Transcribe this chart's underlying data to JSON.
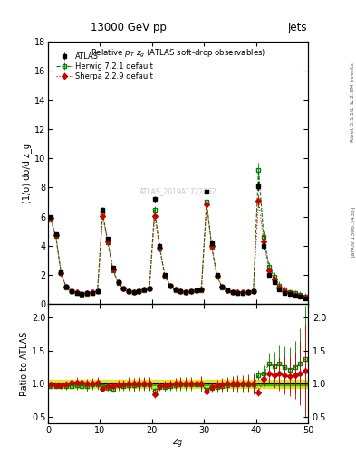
{
  "title_top": "13000 GeV pp",
  "title_right": "Jets",
  "plot_title": "Relative $p_T$ $z_g$ (ATLAS soft-drop observables)",
  "xlabel": "$z_g$",
  "ylabel_main": "(1/σ) dσ/d z_g",
  "ylabel_ratio": "Ratio to ATLAS",
  "right_label1": "Rivet 3.1.10; ≥ 2.9M events",
  "right_label2": "[arXiv:1306.3436]",
  "watermark": "ATLAS_2019A1722062",
  "xlim": [
    0,
    50
  ],
  "ylim_main": [
    0,
    18
  ],
  "ylim_ratio": [
    0.4,
    2.2
  ],
  "yticks_main": [
    0,
    2,
    4,
    6,
    8,
    10,
    12,
    14,
    16,
    18
  ],
  "yticks_ratio": [
    0.5,
    1.0,
    1.5,
    2.0
  ],
  "legend_atlas": "ATLAS",
  "legend_herwig": "Herwig 7.2.1 default",
  "legend_sherpa": "Sherpa 2.2.9 default",
  "atlas_color": "#000000",
  "herwig_color": "#008000",
  "sherpa_color": "#cc0000",
  "band_color_inner": "#00bb00",
  "band_color_outer": "#dddd00",
  "background_color": "#ffffff",
  "atlas_x": [
    0.5,
    1.5,
    2.5,
    3.5,
    4.5,
    5.5,
    6.5,
    7.5,
    8.5,
    9.5,
    10.5,
    11.5,
    12.5,
    13.5,
    14.5,
    15.5,
    16.5,
    17.5,
    18.5,
    19.5,
    20.5,
    21.5,
    22.5,
    23.5,
    24.5,
    25.5,
    26.5,
    27.5,
    28.5,
    29.5,
    30.5,
    31.5,
    32.5,
    33.5,
    34.5,
    35.5,
    36.5,
    37.5,
    38.5,
    39.5,
    40.5,
    41.5,
    42.5,
    43.5,
    44.5,
    45.5,
    46.5,
    47.5,
    48.5,
    49.5
  ],
  "atlas_y": [
    6.0,
    4.8,
    2.2,
    1.2,
    0.9,
    0.8,
    0.7,
    0.75,
    0.8,
    0.9,
    6.5,
    4.5,
    2.5,
    1.5,
    1.1,
    0.9,
    0.85,
    0.9,
    1.0,
    1.1,
    7.2,
    4.0,
    2.0,
    1.3,
    1.0,
    0.9,
    0.85,
    0.9,
    0.95,
    1.0,
    7.7,
    4.2,
    2.0,
    1.2,
    0.95,
    0.85,
    0.8,
    0.8,
    0.85,
    0.9,
    8.1,
    4.0,
    2.0,
    1.5,
    1.0,
    0.8,
    0.7,
    0.6,
    0.5,
    0.4
  ],
  "atlas_yerr": [
    0.12,
    0.1,
    0.06,
    0.05,
    0.04,
    0.04,
    0.04,
    0.04,
    0.04,
    0.05,
    0.18,
    0.14,
    0.09,
    0.07,
    0.05,
    0.05,
    0.05,
    0.05,
    0.06,
    0.07,
    0.22,
    0.16,
    0.09,
    0.06,
    0.05,
    0.05,
    0.05,
    0.05,
    0.06,
    0.07,
    0.28,
    0.2,
    0.11,
    0.08,
    0.06,
    0.06,
    0.06,
    0.06,
    0.07,
    0.09,
    0.35,
    0.25,
    0.14,
    0.12,
    0.1,
    0.1,
    0.1,
    0.1,
    0.12,
    0.15
  ],
  "herwig_y": [
    5.82,
    4.65,
    2.12,
    1.16,
    0.87,
    0.78,
    0.68,
    0.72,
    0.79,
    0.89,
    6.28,
    4.22,
    2.32,
    1.46,
    1.06,
    0.88,
    0.83,
    0.89,
    0.99,
    1.09,
    6.48,
    3.82,
    1.91,
    1.26,
    0.98,
    0.89,
    0.84,
    0.89,
    0.94,
    0.99,
    7.02,
    3.92,
    1.91,
    1.16,
    0.93,
    0.84,
    0.79,
    0.79,
    0.84,
    0.89,
    9.2,
    4.6,
    2.6,
    1.9,
    1.3,
    1.0,
    0.85,
    0.75,
    0.65,
    0.55
  ],
  "herwig_yerr": [
    0.14,
    0.11,
    0.07,
    0.05,
    0.04,
    0.04,
    0.04,
    0.04,
    0.04,
    0.05,
    0.2,
    0.16,
    0.1,
    0.08,
    0.06,
    0.06,
    0.06,
    0.06,
    0.07,
    0.08,
    0.25,
    0.18,
    0.1,
    0.07,
    0.06,
    0.06,
    0.06,
    0.06,
    0.07,
    0.08,
    0.32,
    0.22,
    0.12,
    0.09,
    0.07,
    0.07,
    0.07,
    0.07,
    0.08,
    0.1,
    0.5,
    0.4,
    0.3,
    0.28,
    0.25,
    0.22,
    0.2,
    0.2,
    0.22,
    0.25
  ],
  "sherpa_y": [
    5.92,
    4.72,
    2.16,
    1.19,
    0.92,
    0.82,
    0.71,
    0.75,
    0.81,
    0.92,
    6.02,
    4.32,
    2.41,
    1.49,
    1.09,
    0.91,
    0.85,
    0.91,
    1.01,
    1.11,
    6.02,
    3.87,
    1.96,
    1.29,
    1.01,
    0.91,
    0.86,
    0.91,
    0.96,
    1.01,
    6.82,
    4.02,
    1.96,
    1.19,
    0.95,
    0.86,
    0.81,
    0.81,
    0.86,
    0.91,
    7.1,
    4.3,
    2.3,
    1.7,
    1.15,
    0.9,
    0.78,
    0.68,
    0.58,
    0.48
  ],
  "sherpa_yerr": [
    0.14,
    0.11,
    0.07,
    0.05,
    0.04,
    0.04,
    0.04,
    0.04,
    0.04,
    0.05,
    0.2,
    0.16,
    0.1,
    0.08,
    0.06,
    0.06,
    0.06,
    0.06,
    0.07,
    0.08,
    0.25,
    0.18,
    0.1,
    0.07,
    0.06,
    0.06,
    0.06,
    0.06,
    0.07,
    0.08,
    0.32,
    0.22,
    0.12,
    0.09,
    0.07,
    0.07,
    0.07,
    0.07,
    0.08,
    0.1,
    0.45,
    0.35,
    0.25,
    0.25,
    0.22,
    0.2,
    0.18,
    0.18,
    0.2,
    0.22
  ],
  "band_x": [
    0,
    1,
    2,
    3,
    4,
    5,
    6,
    7,
    8,
    9,
    10,
    11,
    12,
    13,
    14,
    15,
    16,
    17,
    18,
    19,
    20,
    21,
    22,
    23,
    24,
    25,
    26,
    27,
    28,
    29,
    30,
    31,
    32,
    33,
    34,
    35,
    36,
    37,
    38,
    39,
    40,
    41,
    42,
    43,
    44,
    45,
    46,
    47,
    48,
    49,
    50
  ],
  "band_inner": [
    0.025,
    0.025,
    0.025,
    0.025,
    0.025,
    0.025,
    0.025,
    0.025,
    0.025,
    0.025,
    0.025,
    0.025,
    0.025,
    0.025,
    0.025,
    0.025,
    0.025,
    0.025,
    0.025,
    0.025,
    0.025,
    0.025,
    0.025,
    0.025,
    0.025,
    0.025,
    0.025,
    0.025,
    0.025,
    0.025,
    0.025,
    0.025,
    0.025,
    0.025,
    0.025,
    0.025,
    0.025,
    0.025,
    0.025,
    0.025,
    0.025,
    0.025,
    0.025,
    0.025,
    0.025,
    0.025,
    0.025,
    0.025,
    0.025,
    0.025,
    0.025
  ],
  "band_outer": [
    0.055,
    0.055,
    0.055,
    0.055,
    0.055,
    0.055,
    0.055,
    0.055,
    0.055,
    0.055,
    0.055,
    0.055,
    0.055,
    0.055,
    0.055,
    0.055,
    0.055,
    0.055,
    0.055,
    0.055,
    0.055,
    0.055,
    0.055,
    0.055,
    0.055,
    0.055,
    0.055,
    0.055,
    0.055,
    0.055,
    0.055,
    0.055,
    0.055,
    0.055,
    0.055,
    0.055,
    0.055,
    0.055,
    0.055,
    0.055,
    0.055,
    0.055,
    0.055,
    0.055,
    0.055,
    0.055,
    0.055,
    0.055,
    0.055,
    0.055,
    0.055
  ]
}
